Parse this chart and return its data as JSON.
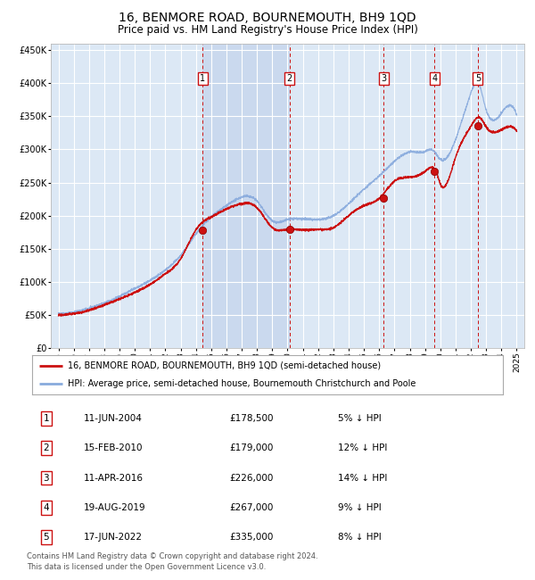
{
  "title": "16, BENMORE ROAD, BOURNEMOUTH, BH9 1QD",
  "subtitle": "Price paid vs. HM Land Registry's House Price Index (HPI)",
  "title_fontsize": 10,
  "subtitle_fontsize": 8.5,
  "background_color": "#ffffff",
  "plot_bg_color": "#dce8f5",
  "grid_color": "#ffffff",
  "hpi_line_color": "#88aadd",
  "price_line_color": "#cc1111",
  "marker_color": "#cc1111",
  "shade_color": "#c8d8ee",
  "ylim": [
    0,
    460000
  ],
  "yticks": [
    0,
    50000,
    100000,
    150000,
    200000,
    250000,
    300000,
    350000,
    400000,
    450000
  ],
  "ytick_labels": [
    "£0",
    "£50K",
    "£100K",
    "£150K",
    "£200K",
    "£250K",
    "£300K",
    "£350K",
    "£400K",
    "£450K"
  ],
  "xlim_start": 1994.5,
  "xlim_end": 2025.5,
  "xticks": [
    1995,
    1996,
    1997,
    1998,
    1999,
    2000,
    2001,
    2002,
    2003,
    2004,
    2005,
    2006,
    2007,
    2008,
    2009,
    2010,
    2011,
    2012,
    2013,
    2014,
    2015,
    2016,
    2017,
    2018,
    2019,
    2020,
    2021,
    2022,
    2023,
    2024,
    2025
  ],
  "transactions": [
    {
      "num": 1,
      "date": "11-JUN-2004",
      "year": 2004.45,
      "price": 178500,
      "label": "5% ↓ HPI"
    },
    {
      "num": 2,
      "date": "15-FEB-2010",
      "year": 2010.12,
      "price": 179000,
      "label": "12% ↓ HPI"
    },
    {
      "num": 3,
      "date": "11-APR-2016",
      "year": 2016.28,
      "price": 226000,
      "label": "14% ↓ HPI"
    },
    {
      "num": 4,
      "date": "19-AUG-2019",
      "year": 2019.63,
      "price": 267000,
      "label": "9% ↓ HPI"
    },
    {
      "num": 5,
      "date": "17-JUN-2022",
      "year": 2022.46,
      "price": 335000,
      "label": "8% ↓ HPI"
    }
  ],
  "legend1": "16, BENMORE ROAD, BOURNEMOUTH, BH9 1QD (semi-detached house)",
  "legend2": "HPI: Average price, semi-detached house, Bournemouth Christchurch and Poole",
  "footer1": "Contains HM Land Registry data © Crown copyright and database right 2024.",
  "footer2": "This data is licensed under the Open Government Licence v3.0."
}
